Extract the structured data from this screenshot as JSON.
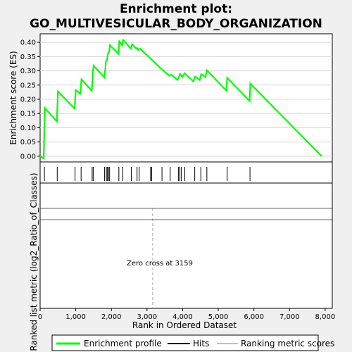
{
  "chart_data": {
    "type": "line",
    "title_line1": "Enrichment plot:",
    "title_line2": "GO_MULTIVESICULAR_BODY_ORGANIZATION",
    "ylabel_top": "Enrichment score (ES)",
    "ylabel_bottom": "Ranked list metric (log2_Ratio_of_Classes)",
    "xlabel": "Rank in Ordered Dataset",
    "xlim": [
      0,
      8200
    ],
    "ylim": [
      -0.02,
      0.43
    ],
    "x_ticks": [
      0,
      1000,
      2000,
      3000,
      4000,
      5000,
      6000,
      7000,
      8000
    ],
    "x_tick_labels": [
      "0",
      "1,000",
      "2,000",
      "3,000",
      "4,000",
      "5,000",
      "6,000",
      "7,000",
      "8,000"
    ],
    "y_ticks": [
      0.0,
      0.05,
      0.1,
      0.15,
      0.2,
      0.25,
      0.3,
      0.35,
      0.4
    ],
    "y_tick_labels": [
      "0.00",
      "0.05",
      "0.10",
      "0.15",
      "0.20",
      "0.25",
      "0.30",
      "0.35",
      "0.40"
    ],
    "annotation": "Zero cross at 3159",
    "zero_cross": 3159,
    "series": [
      {
        "name": "Enrichment profile",
        "color": "#00ff00",
        "x": [
          0,
          100,
          130,
          470,
          500,
          970,
          1000,
          1130,
          1160,
          1450,
          1470,
          1480,
          1500,
          1800,
          1830,
          1850,
          1880,
          1900,
          1940,
          1960,
          2200,
          2220,
          2300,
          2330,
          2550,
          2580,
          2700,
          2720,
          2750,
          2800,
          3400,
          3620,
          3680,
          3850,
          3880,
          3930,
          3990,
          4050,
          4300,
          4350,
          4480,
          4520,
          4640,
          4680,
          5230,
          5250,
          5880,
          5900,
          7900
        ],
        "y": [
          0.0,
          -0.008,
          0.17,
          0.122,
          0.228,
          0.167,
          0.232,
          0.22,
          0.27,
          0.23,
          0.27,
          0.295,
          0.318,
          0.277,
          0.307,
          0.335,
          0.338,
          0.36,
          0.367,
          0.39,
          0.36,
          0.403,
          0.39,
          0.408,
          0.378,
          0.393,
          0.378,
          0.38,
          0.373,
          0.378,
          0.307,
          0.283,
          0.287,
          0.268,
          0.273,
          0.289,
          0.278,
          0.291,
          0.263,
          0.28,
          0.268,
          0.288,
          0.278,
          0.302,
          0.23,
          0.275,
          0.194,
          0.255,
          0.0
        ]
      }
    ],
    "hits": [
      120,
      480,
      980,
      1150,
      1460,
      1490,
      1810,
      1860,
      1890,
      1920,
      1950,
      2210,
      2320,
      2560,
      2720,
      2780,
      3100,
      3130,
      3420,
      3650,
      3880,
      3920,
      3960,
      4060,
      4340,
      4510,
      4680,
      5250,
      5890
    ],
    "legend": [
      {
        "label": "Enrichment profile",
        "color": "#00ff00"
      },
      {
        "label": "Hits",
        "color": "#000000"
      },
      {
        "label": "Ranking metric scores",
        "color": "#c0c0c0"
      }
    ],
    "heatmap_bands": [
      {
        "from": 0,
        "to": 2250,
        "color": "#f06060"
      },
      {
        "from": 2250,
        "to": 2700,
        "color": "#f4a0b4"
      },
      {
        "from": 2700,
        "to": 3159,
        "color": "#f8c8dc"
      },
      {
        "from": 3159,
        "to": 4400,
        "color": "#dcdcf4"
      },
      {
        "from": 4400,
        "to": 5350,
        "color": "#c8c8f4"
      },
      {
        "from": 5350,
        "to": 6150,
        "color": "#8080e8"
      },
      {
        "from": 6150,
        "to": 7550,
        "color": "#5050e0"
      },
      {
        "from": 7550,
        "to": 7900,
        "color": "#2020c8"
      }
    ]
  }
}
